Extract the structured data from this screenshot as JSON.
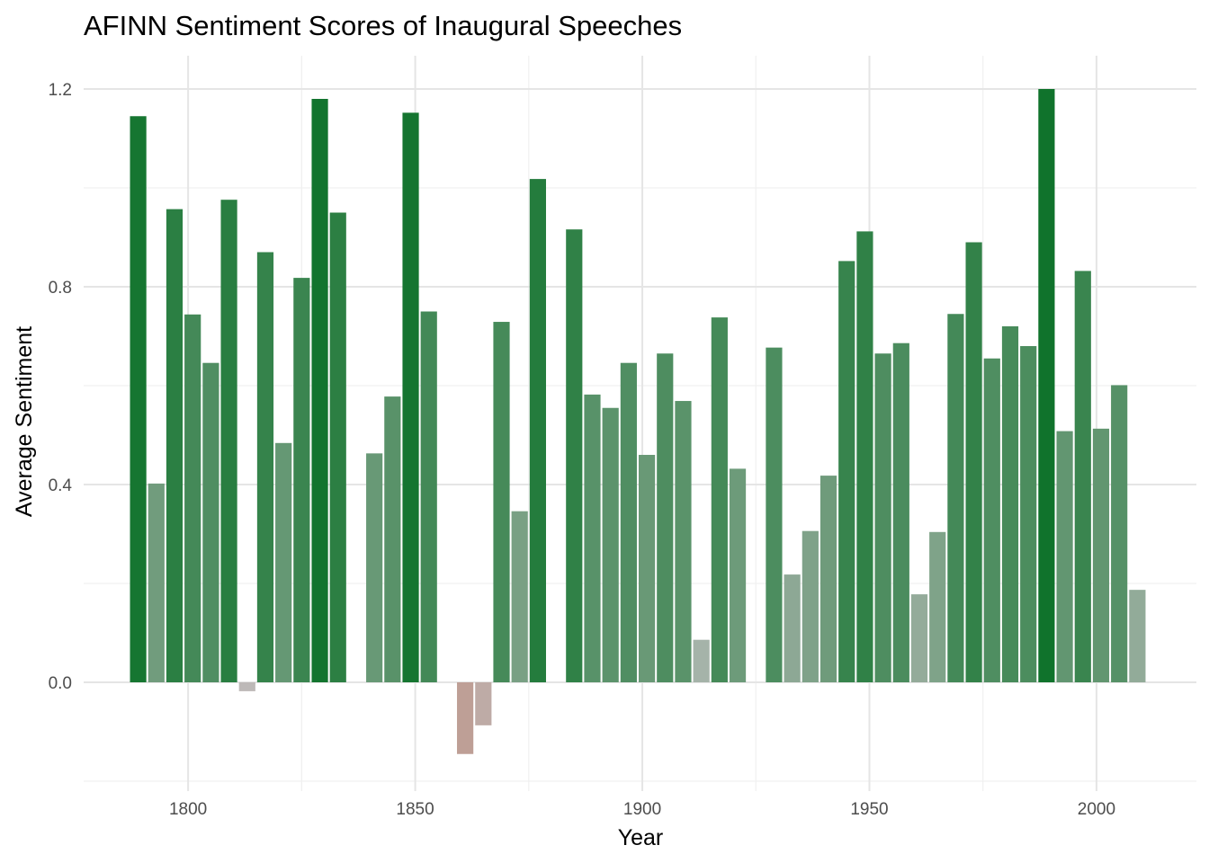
{
  "chart_data": {
    "type": "bar",
    "title": "AFINN Sentiment Scores of Inaugural Speeches",
    "xlabel": "Year",
    "ylabel": "Average Sentiment",
    "xlim": [
      1777,
      2022
    ],
    "ylim": [
      -0.2,
      1.25
    ],
    "x_ticks": [
      1800,
      1850,
      1900,
      1950,
      2000
    ],
    "x_tick_labels": [
      "1800",
      "1850",
      "1900",
      "1950",
      "2000"
    ],
    "y_ticks": [
      0.0,
      0.4,
      0.8,
      1.2
    ],
    "y_tick_labels": [
      "0.0",
      "0.4",
      "0.8",
      "1.2"
    ],
    "grid": true,
    "bar_width_years": 3.6,
    "color_scale": {
      "negative": "#c0725c",
      "zero": "#bdbdbd",
      "positive": "#10732c"
    },
    "x": [
      1789,
      1793,
      1797,
      1801,
      1805,
      1809,
      1813,
      1817,
      1821,
      1825,
      1829,
      1833,
      1837,
      1841,
      1845,
      1849,
      1853,
      1857,
      1861,
      1865,
      1869,
      1873,
      1877,
      1881,
      1885,
      1889,
      1893,
      1897,
      1901,
      1905,
      1909,
      1913,
      1917,
      1921,
      1925,
      1929,
      1933,
      1937,
      1941,
      1945,
      1949,
      1953,
      1957,
      1961,
      1965,
      1969,
      1973,
      1977,
      1981,
      1985,
      1989,
      1993,
      1997,
      2001,
      2005,
      2009
    ],
    "values": [
      1.145,
      0.402,
      0.957,
      0.744,
      0.646,
      0.976,
      -0.018,
      0.87,
      0.484,
      0.818,
      1.18,
      0.95,
      0.0,
      0.463,
      0.578,
      1.152,
      0.75,
      0.0,
      -0.145,
      -0.087,
      0.729,
      0.346,
      1.018,
      0.0,
      0.916,
      0.582,
      0.555,
      0.646,
      0.46,
      0.665,
      0.569,
      0.086,
      0.738,
      0.432,
      0.0,
      0.677,
      0.218,
      0.306,
      0.418,
      0.852,
      0.912,
      0.665,
      0.686,
      0.178,
      0.304,
      0.745,
      0.89,
      0.655,
      0.72,
      0.68,
      1.2,
      0.508,
      0.832,
      0.513,
      0.601,
      0.187
    ]
  }
}
